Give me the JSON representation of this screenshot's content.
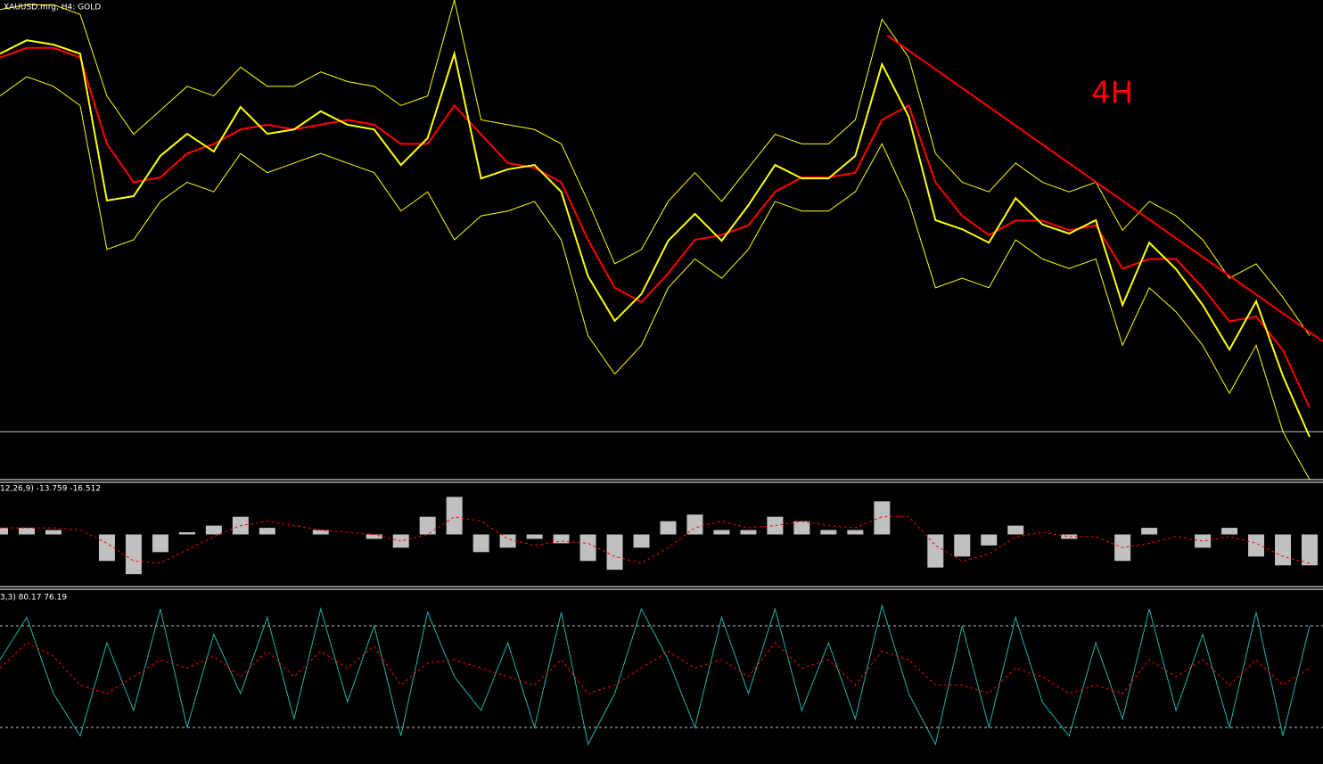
{
  "chart_data": [
    {
      "type": "line",
      "title": "XAUUSD.mrg, H4:  GOLD",
      "annotation": "4H",
      "annotation_color": "#ff0000",
      "x": [
        0,
        1,
        2,
        3,
        4,
        5,
        6,
        7,
        8,
        9,
        10,
        11,
        12,
        13,
        14,
        15,
        16,
        17,
        18,
        19,
        20,
        21,
        22,
        23,
        24,
        25,
        26,
        27,
        28,
        29,
        30,
        31,
        32,
        33,
        34,
        35,
        36,
        37,
        38,
        39,
        40,
        41,
        42,
        43,
        44,
        45,
        46,
        47,
        48,
        49
      ],
      "xlim": [
        0,
        49.5
      ],
      "ylim": [
        0,
        100
      ],
      "series": [
        {
          "color": "#ffff00",
          "width": 1,
          "values": [
            98,
            99,
            99,
            97,
            80,
            72,
            77,
            82,
            80,
            86,
            82,
            82,
            85,
            83,
            82,
            78,
            80,
            100,
            75,
            74,
            73,
            70,
            58,
            45,
            48,
            58,
            64,
            58,
            65,
            72,
            70,
            70,
            75,
            96,
            88,
            68,
            62,
            60,
            66,
            62,
            60,
            62,
            52,
            58,
            55,
            50,
            42,
            45,
            38,
            30
          ]
        },
        {
          "color": "#ffff00",
          "width": 1,
          "values": [
            80,
            84,
            82,
            78,
            48,
            50,
            58,
            62,
            60,
            68,
            64,
            66,
            68,
            66,
            64,
            56,
            60,
            50,
            55,
            56,
            58,
            50,
            30,
            22,
            28,
            40,
            46,
            42,
            48,
            58,
            56,
            56,
            60,
            70,
            58,
            40,
            42,
            40,
            50,
            46,
            44,
            46,
            28,
            40,
            35,
            28,
            18,
            28,
            10,
            0
          ]
        },
        {
          "color": "#ff0000",
          "width": 2,
          "values": [
            88,
            90,
            90,
            88,
            70,
            62,
            63,
            68,
            70,
            73,
            74,
            73,
            74,
            75,
            74,
            70,
            70,
            78,
            72,
            66,
            65,
            62,
            50,
            40,
            37,
            43,
            50,
            51,
            53,
            60,
            63,
            63,
            64,
            75,
            78,
            62,
            55,
            51,
            54,
            54,
            52,
            53,
            44,
            46,
            46,
            40,
            33,
            34,
            27,
            15
          ]
        },
        {
          "color": "#ffff00",
          "width": 2,
          "values": [
            88.8,
            91.6,
            90.7,
            88.8,
            58.2,
            59.1,
            67.5,
            72.1,
            68.4,
            77.7,
            72.1,
            73.0,
            76.8,
            74.0,
            73.0,
            65.6,
            71.2,
            88.8,
            62.8,
            64.7,
            65.6,
            60.0,
            42.4,
            33.1,
            38.7,
            49.8,
            55.4,
            49.8,
            57.2,
            65.6,
            62.8,
            62.8,
            67.5,
            86.6,
            75.7,
            54.1,
            52.2,
            49.4,
            58.7,
            53.2,
            51.3,
            54.1,
            36.4,
            49.4,
            43.9,
            36.4,
            27.1,
            37.2,
            21.6,
            8.9
          ]
        }
      ],
      "trendline": {
        "color": "#ff0000",
        "x": [
          33.2,
          49.5
        ],
        "y": [
          92.6,
          28.8
        ]
      },
      "hline": 10,
      "hline_color": "#c0c0c0"
    },
    {
      "type": "bar",
      "title": "12,26,9) -13.759 -16.512",
      "color": "#c0c0c0",
      "ylim": [
        -22,
        22
      ],
      "values": [
        3,
        3,
        2,
        0,
        -12,
        -18,
        -8,
        1,
        4,
        8,
        3,
        0,
        2,
        0,
        -2,
        -6,
        8,
        17,
        -8,
        -6,
        -2,
        -4,
        -12,
        -16,
        -6,
        6,
        9,
        2,
        2,
        8,
        6,
        2,
        2,
        15,
        0,
        -15,
        -10,
        -5,
        4,
        0,
        -2,
        0,
        -12,
        3,
        0,
        -6,
        3,
        -10,
        -14,
        -14
      ],
      "signal": {
        "color": "#ff0000",
        "dash": true,
        "values": [
          3,
          3,
          3,
          2,
          -4,
          -12,
          -13,
          -7,
          -1,
          4,
          6,
          4,
          2,
          1,
          0,
          -3,
          0,
          8,
          6,
          -2,
          -5,
          -3,
          -4,
          -10,
          -13,
          -6,
          3,
          6,
          3,
          4,
          6,
          4,
          3,
          8,
          8,
          -5,
          -12,
          -9,
          -1,
          1,
          -1,
          -1,
          -6,
          -4,
          -1,
          -3,
          -1,
          -4,
          -10,
          -13
        ]
      }
    },
    {
      "type": "line",
      "title": "3,3) 80.17 76.19",
      "ylim": [
        0,
        100
      ],
      "levels": [
        80,
        20
      ],
      "level_color": "#c0c0c0",
      "series": [
        {
          "color": "#20b2aa",
          "width": 1,
          "values": [
            60,
            85,
            40,
            15,
            70,
            30,
            90,
            20,
            75,
            40,
            85,
            25,
            90,
            35,
            80,
            15,
            88,
            50,
            30,
            70,
            20,
            88,
            10,
            40,
            90,
            60,
            20,
            85,
            40,
            90,
            30,
            70,
            25,
            92,
            40,
            10,
            80,
            20,
            85,
            35,
            15,
            70,
            25,
            90,
            30,
            75,
            20,
            88,
            15,
            80
          ]
        },
        {
          "color": "#ff0000",
          "width": 1,
          "dash": true,
          "values": [
            55,
            70,
            62,
            45,
            40,
            50,
            60,
            55,
            62,
            50,
            65,
            50,
            65,
            55,
            68,
            45,
            58,
            60,
            55,
            50,
            45,
            60,
            40,
            45,
            55,
            65,
            55,
            60,
            50,
            70,
            55,
            60,
            45,
            65,
            60,
            45,
            45,
            40,
            55,
            50,
            40,
            45,
            40,
            60,
            50,
            60,
            45,
            60,
            45,
            55
          ]
        }
      ]
    }
  ]
}
